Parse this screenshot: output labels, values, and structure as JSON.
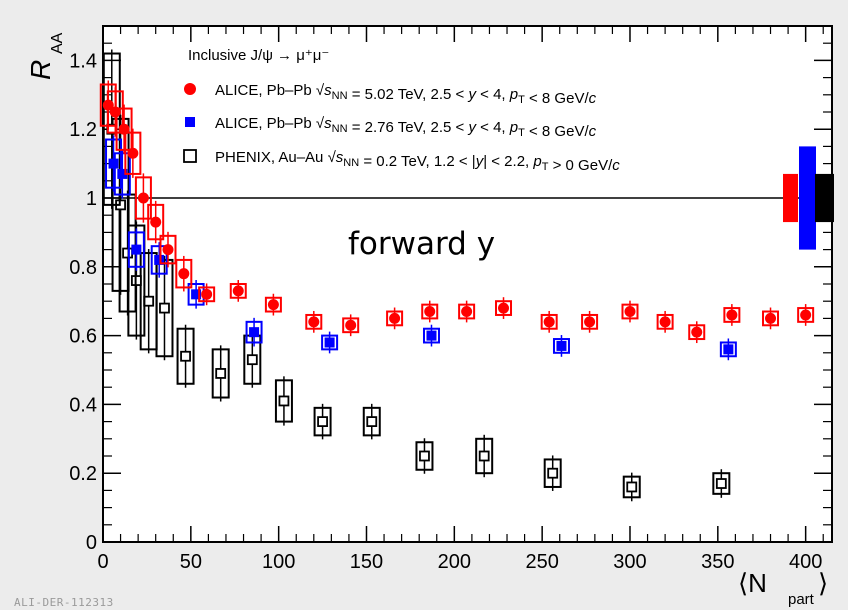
{
  "chart_data": {
    "type": "scatter",
    "title": "Inclusive J/ψ → μ⁺μ⁻",
    "annotation": "forward y",
    "source_tag": "ALI-DER-112313",
    "ylabel": "R",
    "ylabel_sub": "AA",
    "xlabel": "⟨N",
    "xlabel_sub": "part",
    "xlabel_close": "⟩",
    "xlim": [
      0,
      415
    ],
    "ylim": [
      0,
      1.5
    ],
    "xticks": [
      0,
      50,
      100,
      150,
      200,
      250,
      300,
      350,
      400
    ],
    "yticks": [
      0,
      0.2,
      0.4,
      0.6,
      0.8,
      1,
      1.2,
      1.4
    ],
    "reference_line": 1,
    "legend_position": "top-center",
    "series": [
      {
        "name": "ALICE, Pb–Pb √sNN = 5.02 TeV, 2.5 < y < 4, pT < 8 GeV/c",
        "legend": {
          "exp": "ALICE, Pb–Pb",
          "energy": " = 5.02 TeV, 2.5 < ",
          "range": " < 4, ",
          "cut": " < 8 GeV/c"
        },
        "color": "#ff0000",
        "marker": "circle",
        "x": [
          358,
          380,
          400,
          338,
          320,
          300,
          277,
          254,
          228,
          207,
          186,
          166,
          141,
          120,
          97,
          77,
          59,
          46,
          37,
          30,
          23,
          17,
          12,
          7,
          3
        ],
        "y": [
          0.66,
          0.65,
          0.66,
          0.61,
          0.64,
          0.67,
          0.64,
          0.64,
          0.68,
          0.67,
          0.67,
          0.65,
          0.63,
          0.64,
          0.69,
          0.73,
          0.72,
          0.78,
          0.85,
          0.93,
          1.0,
          1.13,
          1.2,
          1.25,
          1.27
        ],
        "box_half_height": [
          0.02,
          0.02,
          0.02,
          0.02,
          0.02,
          0.02,
          0.02,
          0.02,
          0.02,
          0.02,
          0.02,
          0.02,
          0.02,
          0.02,
          0.02,
          0.02,
          0.02,
          0.04,
          0.04,
          0.05,
          0.06,
          0.06,
          0.06,
          0.06,
          0.06
        ]
      },
      {
        "name": "ALICE, Pb–Pb √sNN = 2.76 TeV, 2.5 < y < 4, pT < 8 GeV/c",
        "legend": {
          "exp": "ALICE, Pb–Pb",
          "energy": " = 2.76 TeV, 2.5 < ",
          "range": " < 4, ",
          "cut": " < 8 GeV/c"
        },
        "color": "#0000ff",
        "marker": "square",
        "x": [
          356,
          261,
          187,
          129,
          86,
          53,
          32,
          19,
          11,
          6
        ],
        "y": [
          0.56,
          0.57,
          0.6,
          0.58,
          0.61,
          0.72,
          0.82,
          0.85,
          1.07,
          1.1
        ],
        "box_half_height": [
          0.02,
          0.02,
          0.02,
          0.02,
          0.03,
          0.03,
          0.04,
          0.05,
          0.06,
          0.07
        ]
      },
      {
        "name": "PHENIX, Au–Au √sNN = 0.2 TeV, 1.2 < |y| < 2.2, pT > 0 GeV/c",
        "legend": {
          "exp": "PHENIX, Au–Au",
          "energy": " = 0.2 TeV, 1.2 < |",
          "range": "| < 2.2, ",
          "cut": " > 0 GeV/c"
        },
        "color": "#000000",
        "marker": "open-square",
        "x": [
          352,
          301,
          256,
          217,
          183,
          153,
          125,
          103,
          85,
          67,
          47,
          35,
          26,
          19,
          14,
          10,
          5
        ],
        "y": [
          0.17,
          0.16,
          0.2,
          0.25,
          0.25,
          0.35,
          0.35,
          0.41,
          0.53,
          0.49,
          0.54,
          0.68,
          0.7,
          0.76,
          0.84,
          0.98,
          1.2
        ],
        "box_half_height": [
          0.03,
          0.03,
          0.04,
          0.05,
          0.04,
          0.04,
          0.04,
          0.06,
          0.07,
          0.07,
          0.08,
          0.14,
          0.14,
          0.16,
          0.17,
          0.25,
          0.22
        ]
      }
    ],
    "global_uncertainty_boxes": [
      {
        "color": "#ff0000",
        "half_height": 0.07
      },
      {
        "color": "#0000ff",
        "half_height": 0.15
      },
      {
        "color": "#000000",
        "half_height": 0.07
      }
    ]
  }
}
